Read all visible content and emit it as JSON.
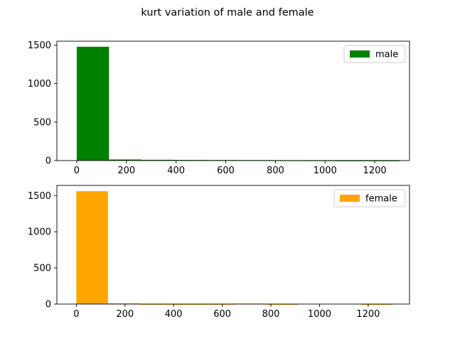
{
  "figure": {
    "title": "kurt variation of male and female"
  },
  "chart_data": [
    {
      "type": "histogram",
      "title": "",
      "xlabel": "",
      "ylabel": "",
      "xlim": [
        -80,
        1340
      ],
      "ylim": [
        0,
        1550
      ],
      "xticks": [
        0,
        200,
        400,
        600,
        800,
        1000,
        1200
      ],
      "yticks": [
        0,
        500,
        1000,
        1500
      ],
      "grid": false,
      "legend_position": "top-right",
      "series": [
        {
          "name": "male",
          "color": "#008000",
          "bins": [
            {
              "x0": 0,
              "x1": 130,
              "value": 1478
            },
            {
              "x0": 130,
              "x1": 260,
              "value": 14
            },
            {
              "x0": 260,
              "x1": 390,
              "value": 10
            },
            {
              "x0": 390,
              "x1": 520,
              "value": 8
            },
            {
              "x0": 520,
              "x1": 650,
              "value": 7
            },
            {
              "x0": 650,
              "x1": 780,
              "value": 6
            },
            {
              "x0": 780,
              "x1": 910,
              "value": 5
            },
            {
              "x0": 910,
              "x1": 1040,
              "value": 4
            },
            {
              "x0": 1040,
              "x1": 1170,
              "value": 2
            },
            {
              "x0": 1170,
              "x1": 1300,
              "value": 2
            }
          ]
        }
      ]
    },
    {
      "type": "histogram",
      "title": "",
      "xlabel": "",
      "ylabel": "",
      "xlim": [
        -80,
        1370
      ],
      "ylim": [
        0,
        1640
      ],
      "xticks": [
        0,
        200,
        400,
        600,
        800,
        1000,
        1200
      ],
      "yticks": [
        0,
        500,
        1000,
        1500
      ],
      "grid": false,
      "legend_position": "top-right",
      "series": [
        {
          "name": "female",
          "color": "#ffa500",
          "bins": [
            {
              "x0": 0,
              "x1": 130,
              "value": 1560
            },
            {
              "x0": 130,
              "x1": 260,
              "value": 10
            },
            {
              "x0": 260,
              "x1": 390,
              "value": 2
            },
            {
              "x0": 390,
              "x1": 520,
              "value": 1
            },
            {
              "x0": 520,
              "x1": 650,
              "value": 2
            },
            {
              "x0": 650,
              "x1": 780,
              "value": 7
            },
            {
              "x0": 780,
              "x1": 910,
              "value": 1
            },
            {
              "x0": 910,
              "x1": 1040,
              "value": 0
            },
            {
              "x0": 1040,
              "x1": 1170,
              "value": 0
            },
            {
              "x0": 1170,
              "x1": 1300,
              "value": 1
            }
          ]
        }
      ]
    }
  ]
}
